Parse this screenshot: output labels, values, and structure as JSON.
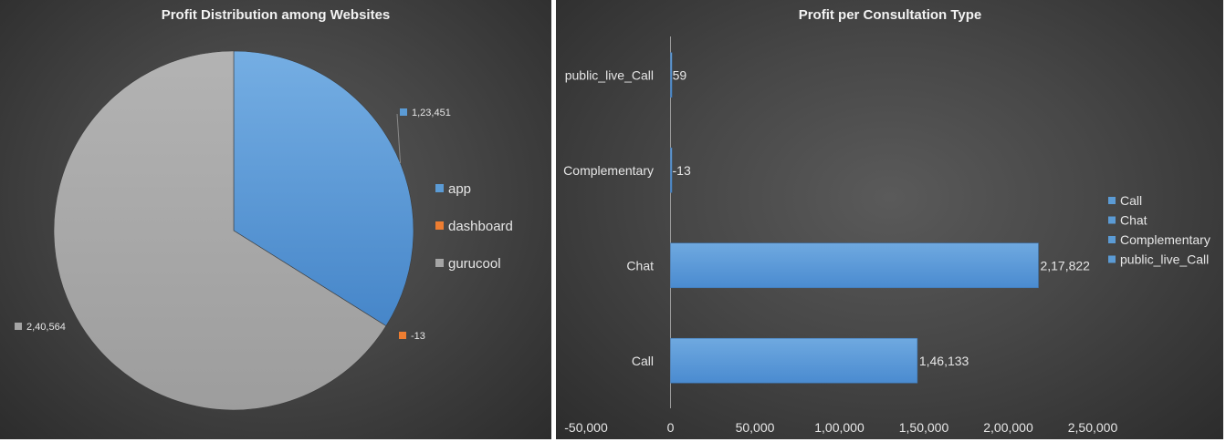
{
  "chart_data": [
    {
      "type": "pie",
      "title": "Profit Distribution among Websites",
      "categories": [
        "app",
        "dashboard",
        "gurucool"
      ],
      "values": [
        123451,
        -13,
        240564
      ],
      "data_labels": [
        "1,23,451",
        "-13",
        "2,40,564"
      ],
      "colors": [
        "#5b9bd5",
        "#ed7d31",
        "#a5a5a5"
      ],
      "legend": {
        "position": "right",
        "entries": [
          "app",
          "dashboard",
          "gurucool"
        ]
      }
    },
    {
      "type": "bar",
      "orientation": "horizontal",
      "title": "Profit per Consultation Type",
      "categories": [
        "Call",
        "Chat",
        "Complementary",
        "public_live_Call"
      ],
      "values": [
        146133,
        217822,
        -13,
        59
      ],
      "data_labels": [
        "1,46,133",
        "2,17,822",
        "-13",
        "59"
      ],
      "xlim": [
        -50000,
        250000
      ],
      "x_ticks": [
        -50000,
        0,
        50000,
        100000,
        150000,
        200000,
        250000
      ],
      "x_tick_labels": [
        "-50,000",
        "0",
        "50,000",
        "1,00,000",
        "1,50,000",
        "2,00,000",
        "2,50,000"
      ],
      "colors": [
        "#5b9bd5",
        "#5b9bd5",
        "#5b9bd5",
        "#5b9bd5"
      ],
      "legend": {
        "position": "right",
        "entries": [
          "Call",
          "Chat",
          "Complementary",
          "public_live_Call"
        ]
      },
      "grid": false
    }
  ]
}
